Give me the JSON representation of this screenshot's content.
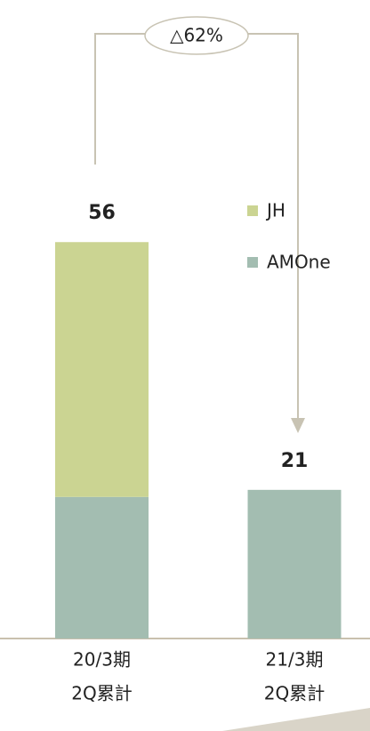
{
  "chart_data": {
    "type": "stacked_bar",
    "categories": [
      [
        "20/3期",
        "2Q累計"
      ],
      [
        "21/3期",
        "2Q累計"
      ]
    ],
    "series": [
      {
        "name": "AMOne",
        "color": "#a3bdb1",
        "values": [
          20,
          21
        ]
      },
      {
        "name": "JH",
        "color": "#cbd492",
        "values": [
          36,
          0
        ]
      }
    ],
    "totals": [
      56,
      21
    ],
    "annotation": "△62%"
  }
}
